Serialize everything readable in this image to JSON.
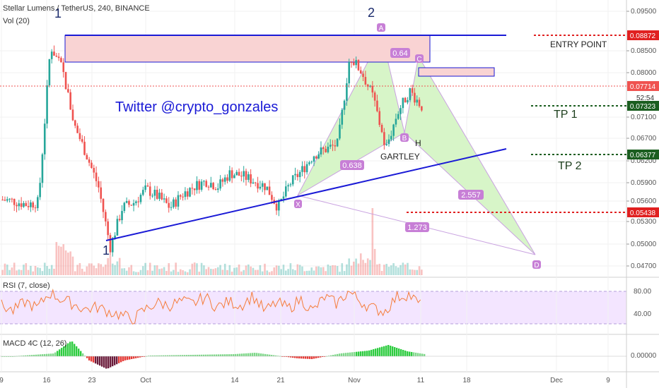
{
  "header": {
    "symbol": "Stellar Lumens / TetherUS, 240, BINANCE",
    "volume_label": "Vol (20)",
    "rsi_label": "RSI (7, close)",
    "macd_label": "MACD 4C (12, 26)"
  },
  "colors": {
    "up": "#26a69a",
    "down": "#ef5350",
    "trendline": "#1a1ad6",
    "harmonic_line": "#c9a2e0",
    "harmonic_fill": "#d7f5c8",
    "zone_fill": "#f9d3d3",
    "label_bg": "#c77fd6",
    "rsi_band": "#f3e5ff",
    "red_dotted": "#e02020",
    "green_dotted": "#1b5e20"
  },
  "annotations": {
    "watermark": "Twitter  @crypto_gonzales",
    "pattern_name": "GARTLEY",
    "entry_text": "ENTRY POINT",
    "tp1_text": "TP 1",
    "tp2_text": "TP 2",
    "wave_1_top": "1",
    "wave_1_bottom": "1",
    "wave_2": "2",
    "point_h": "H",
    "points": [
      "X",
      "A",
      "B",
      "C",
      "D"
    ],
    "ratios": [
      "0.64",
      "0.638",
      "2.557",
      "1.273"
    ]
  },
  "chart_data": {
    "type": "line",
    "title": "Stellar Lumens / TetherUS, 240, BINANCE",
    "xlabel": "",
    "ylabel": "",
    "x_ticks": [
      "9",
      "16",
      "23",
      "Oct",
      "14",
      "21",
      "Nov",
      "11",
      "18",
      "Dec",
      "9"
    ],
    "ylim": [
      0.046,
      0.096
    ],
    "y_ticks": [
      "0.09500",
      "0.08500",
      "0.08000",
      "0.07100",
      "0.06700",
      "0.06200",
      "0.05900",
      "0.05600",
      "0.05300",
      "0.05000",
      "0.04700"
    ],
    "series": [
      {
        "values": [
          0.0595,
          0.0592,
          0.0586,
          0.059,
          0.0885,
          0.084,
          0.0735,
          0.068,
          0.062,
          0.0505,
          0.058,
          0.059,
          0.0615,
          0.06,
          0.058,
          0.0605,
          0.062,
          0.063,
          0.062,
          0.0645,
          0.064,
          0.063,
          0.062,
          0.058,
          0.0625,
          0.065,
          0.068,
          0.069,
          0.07,
          0.0865,
          0.0835,
          0.0785,
          0.069,
          0.076,
          0.08,
          0.0771
        ]
      }
    ],
    "price_labels": [
      "0.08872",
      "0.07714",
      "0.07323",
      "0.06377",
      "0.05438"
    ],
    "countdown": "52:54",
    "rsi": {
      "ticks": [
        "80.00",
        "40.00"
      ],
      "values": [
        55,
        45,
        62,
        50,
        78,
        66,
        58,
        48,
        52,
        44,
        38,
        30,
        48,
        60,
        55,
        62,
        58,
        70,
        52,
        62,
        55,
        72,
        45,
        60,
        50,
        66,
        45,
        70,
        58,
        80,
        62,
        50,
        44,
        70,
        75,
        55
      ]
    },
    "macd": {
      "ticks": [
        "0.00000"
      ]
    }
  }
}
